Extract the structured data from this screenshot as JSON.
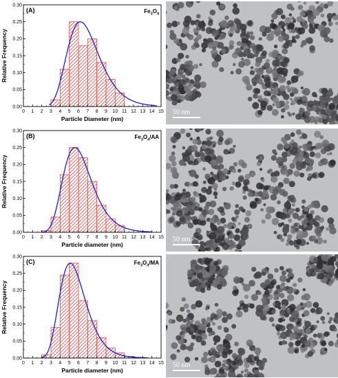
{
  "chart_data": [
    {
      "type": "bar",
      "panel_label": "(A)",
      "sample": "Fe3O4",
      "sample_base": "Fe",
      "sample_sub1": "3",
      "sample_mid": "O",
      "sample_sub2": "4",
      "sample_suffix": "",
      "xlabel": "Particle Diameter (nm)",
      "ylabel": "Relative Frequency",
      "xlim": [
        0,
        15
      ],
      "ylim": [
        0,
        0.3
      ],
      "xticks": [
        "0",
        "1",
        "2",
        "3",
        "4",
        "5",
        "6",
        "7",
        "8",
        "9",
        "10",
        "11",
        "12",
        "13",
        "14",
        "15"
      ],
      "yticks": [
        "0.00",
        "0.05",
        "0.10",
        "0.15",
        "0.20",
        "0.25",
        "0.30"
      ],
      "bins": [
        [
          3,
          4
        ],
        [
          4,
          5
        ],
        [
          5,
          6
        ],
        [
          6,
          7
        ],
        [
          7,
          8
        ],
        [
          8,
          9
        ],
        [
          9,
          10
        ],
        [
          10,
          11
        ]
      ],
      "values": [
        0.02,
        0.11,
        0.25,
        0.18,
        0.2,
        0.13,
        0.08,
        0.04
      ],
      "fit": {
        "type": "lognormal",
        "peak_x": 6.2,
        "peak_y": 0.25,
        "start_x": 2.8,
        "end_x": 14.5
      }
    },
    {
      "type": "bar",
      "panel_label": "(B)",
      "sample": "Fe3O4/AA",
      "sample_base": "Fe",
      "sample_sub1": "3",
      "sample_mid": "O",
      "sample_sub2": "4",
      "sample_suffix": "/AA",
      "xlabel": "Particle diameter (nm)",
      "ylabel": "Relative Frequency",
      "xlim": [
        0,
        15
      ],
      "ylim": [
        0,
        0.3
      ],
      "xticks": [
        "0",
        "1",
        "2",
        "3",
        "4",
        "5",
        "6",
        "7",
        "8",
        "9",
        "10",
        "11",
        "12",
        "13",
        "14",
        "15"
      ],
      "yticks": [
        "0.00",
        "0.05",
        "0.10",
        "0.15",
        "0.20",
        "0.25",
        "0.30"
      ],
      "bins": [
        [
          2,
          3
        ],
        [
          3,
          4
        ],
        [
          4,
          5
        ],
        [
          5,
          6
        ],
        [
          6,
          7
        ],
        [
          7,
          8
        ],
        [
          8,
          9
        ],
        [
          9,
          10
        ],
        [
          10,
          11
        ]
      ],
      "values": [
        0.005,
        0.045,
        0.17,
        0.25,
        0.22,
        0.15,
        0.08,
        0.04,
        0.02
      ],
      "fit": {
        "type": "lognormal",
        "peak_x": 5.6,
        "peak_y": 0.25,
        "start_x": 2.0,
        "end_x": 14.0
      }
    },
    {
      "type": "bar",
      "panel_label": "(C)",
      "sample": "Fe3O4/MA",
      "sample_base": "Fe",
      "sample_sub1": "3",
      "sample_mid": "O",
      "sample_sub2": "4",
      "sample_suffix": "/MA",
      "xlabel": "Particle diameter (nm)",
      "ylabel": "Relative Frequency",
      "xlim": [
        0,
        15
      ],
      "ylim": [
        0,
        0.3
      ],
      "xticks": [
        "0",
        "1",
        "2",
        "3",
        "4",
        "5",
        "6",
        "7",
        "8",
        "9",
        "10",
        "11",
        "12",
        "13",
        "14",
        "15"
      ],
      "yticks": [
        "0.00",
        "0.05",
        "0.10",
        "0.15",
        "0.20",
        "0.25",
        "0.30"
      ],
      "bins": [
        [
          2,
          3
        ],
        [
          3,
          4
        ],
        [
          4,
          5
        ],
        [
          5,
          6
        ],
        [
          6,
          7
        ],
        [
          7,
          8
        ],
        [
          8,
          9
        ],
        [
          9,
          10
        ],
        [
          10,
          11
        ],
        [
          11,
          12
        ],
        [
          12,
          13
        ]
      ],
      "values": [
        0.01,
        0.09,
        0.245,
        0.28,
        0.17,
        0.11,
        0.06,
        0.03,
        0.015,
        0.005,
        0.002
      ],
      "fit": {
        "type": "lognormal",
        "peak_x": 5.1,
        "peak_y": 0.28,
        "start_x": 2.0,
        "end_x": 13.5
      }
    }
  ],
  "tem_images": [
    {
      "scale_label": "50 nm"
    },
    {
      "scale_label": "50 nm"
    },
    {
      "scale_label": "50 nm"
    }
  ],
  "colors": {
    "bar_edge": "#e05050",
    "hatch": "#e05050",
    "fit_line": "#1a1adc",
    "axis": "#000000",
    "tem_bg": "#bfc1c3",
    "particle": "#3a3a3a"
  }
}
